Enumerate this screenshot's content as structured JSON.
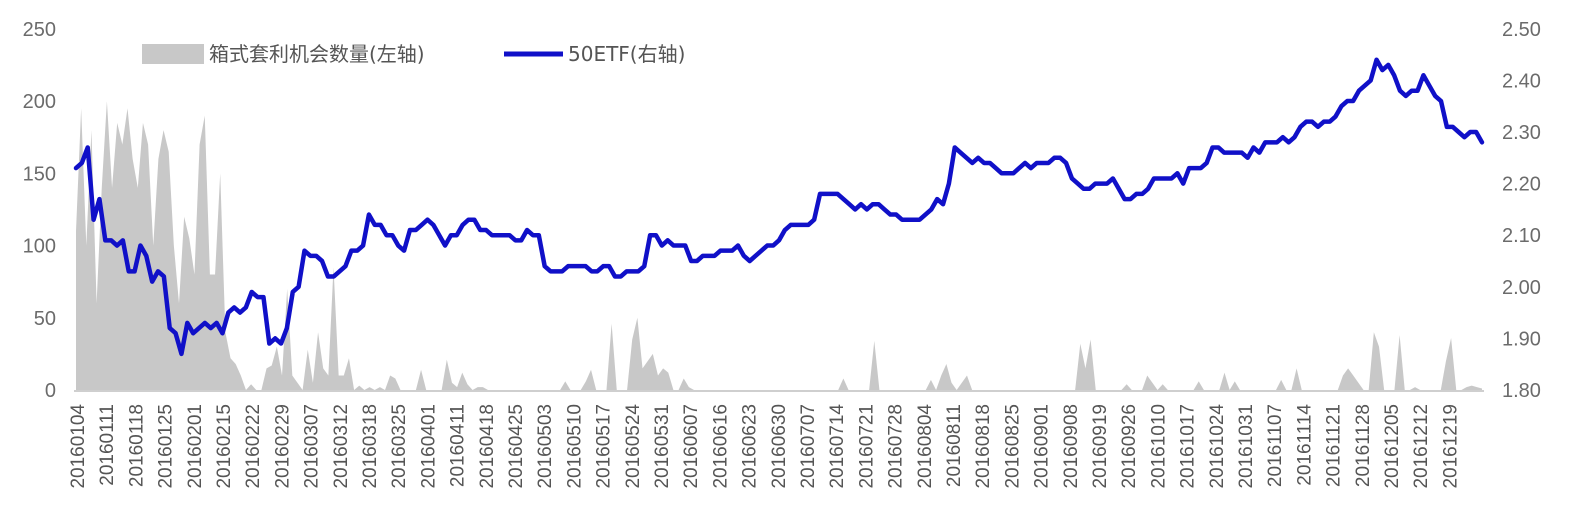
{
  "chart_data": {
    "type": "line",
    "subtype": "area + line, dual y-axis",
    "title": "",
    "xlabel": "",
    "y_left": {
      "ticks": [
        0,
        50,
        100,
        150,
        200,
        250
      ],
      "ylim": [
        0,
        250
      ]
    },
    "y_right": {
      "ticks": [
        "1.80",
        "1.90",
        "2.00",
        "2.10",
        "2.20",
        "2.30",
        "2.40",
        "2.50"
      ],
      "ylim": [
        1.8,
        2.5
      ]
    },
    "x_tick_labels": [
      "20160104",
      "20160111",
      "20160118",
      "20160125",
      "20160201",
      "20160215",
      "20160222",
      "20160229",
      "20160307",
      "20160312",
      "20160318",
      "20160325",
      "20160401",
      "20160411",
      "20160418",
      "20160425",
      "20160503",
      "20160510",
      "20160517",
      "20160524",
      "20160531",
      "20160607",
      "20160616",
      "20160623",
      "20160630",
      "20160707",
      "20160714",
      "20160721",
      "20160728",
      "20160804",
      "20160811",
      "20160818",
      "20160825",
      "20160901",
      "20160908",
      "20160919",
      "20160926",
      "20161010",
      "20161017",
      "20161024",
      "20161031",
      "20161107",
      "20161114",
      "20161121",
      "20161128",
      "20161205",
      "20161212",
      "20161219"
    ],
    "grid": false,
    "legend_position": "top-left",
    "legend": [
      {
        "label": "箱式套利机会数量(左轴)",
        "color": "#c8c8c8",
        "kind": "area"
      },
      {
        "label": "50ETF(右轴)",
        "color": "#1010c8",
        "kind": "line"
      }
    ],
    "series": [
      {
        "name": "箱式套利机会数量(左轴)",
        "axis": "left",
        "kind": "area",
        "color": "#c8c8c8",
        "values": [
          110,
          195,
          100,
          180,
          60,
          140,
          200,
          140,
          185,
          170,
          195,
          160,
          140,
          185,
          170,
          100,
          160,
          180,
          165,
          100,
          60,
          120,
          105,
          80,
          170,
          190,
          80,
          80,
          150,
          40,
          22,
          18,
          10,
          0,
          4,
          0,
          0,
          15,
          17,
          30,
          10,
          70,
          10,
          5,
          0,
          28,
          5,
          40,
          15,
          10,
          85,
          10,
          10,
          22,
          0,
          3,
          0,
          2,
          0,
          2,
          0,
          10,
          8,
          0,
          0,
          0,
          0,
          14,
          0,
          0,
          0,
          0,
          21,
          5,
          2,
          12,
          4,
          0,
          2,
          2,
          0,
          0,
          0,
          0,
          0,
          0,
          0,
          0,
          0,
          0,
          0,
          0,
          0,
          0,
          0,
          6,
          0,
          0,
          0,
          6,
          14,
          0,
          0,
          0,
          46,
          0,
          0,
          0,
          35,
          50,
          15,
          20,
          25,
          10,
          15,
          12,
          0,
          0,
          8,
          2,
          0,
          0,
          0,
          0,
          0,
          0,
          0,
          0,
          0,
          0,
          0,
          0,
          0,
          0,
          0,
          0,
          0,
          0,
          0,
          0,
          0,
          0,
          0,
          0,
          0,
          0,
          0,
          0,
          0,
          8,
          0,
          0,
          0,
          0,
          0,
          34,
          0,
          0,
          0,
          0,
          0,
          0,
          0,
          0,
          0,
          0,
          7,
          0,
          10,
          18,
          5,
          0,
          5,
          10,
          0,
          0,
          0,
          0,
          0,
          0,
          0,
          0,
          0,
          0,
          0,
          0,
          0,
          0,
          0,
          0,
          0,
          0,
          0,
          0,
          0,
          32,
          15,
          35,
          0,
          0,
          0,
          0,
          0,
          0,
          4,
          0,
          0,
          0,
          10,
          5,
          0,
          4,
          0,
          0,
          0,
          0,
          0,
          0,
          6,
          0,
          0,
          0,
          0,
          12,
          0,
          6,
          0,
          0,
          0,
          0,
          0,
          0,
          0,
          0,
          7,
          0,
          0,
          15,
          0,
          0,
          0,
          0,
          0,
          0,
          0,
          0,
          10,
          15,
          10,
          5,
          0,
          0,
          40,
          30,
          0,
          0,
          0,
          38,
          0,
          0,
          2,
          0,
          0,
          0,
          0,
          0,
          20,
          36,
          0,
          0,
          2,
          3,
          2,
          1
        ]
      },
      {
        "name": "50ETF(右轴)",
        "axis": "right",
        "kind": "line",
        "color": "#1010c8",
        "values": [
          2.23,
          2.24,
          2.27,
          2.13,
          2.17,
          2.09,
          2.09,
          2.08,
          2.09,
          2.03,
          2.03,
          2.08,
          2.06,
          2.01,
          2.03,
          2.02,
          1.92,
          1.91,
          1.87,
          1.93,
          1.91,
          1.92,
          1.93,
          1.92,
          1.93,
          1.91,
          1.95,
          1.96,
          1.95,
          1.96,
          1.99,
          1.98,
          1.98,
          1.89,
          1.9,
          1.89,
          1.92,
          1.99,
          2.0,
          2.07,
          2.06,
          2.06,
          2.05,
          2.02,
          2.02,
          2.03,
          2.04,
          2.07,
          2.07,
          2.08,
          2.14,
          2.12,
          2.12,
          2.1,
          2.1,
          2.08,
          2.07,
          2.11,
          2.11,
          2.12,
          2.13,
          2.12,
          2.1,
          2.08,
          2.1,
          2.1,
          2.12,
          2.13,
          2.13,
          2.11,
          2.11,
          2.1,
          2.1,
          2.1,
          2.1,
          2.09,
          2.09,
          2.11,
          2.1,
          2.1,
          2.04,
          2.03,
          2.03,
          2.03,
          2.04,
          2.04,
          2.04,
          2.04,
          2.03,
          2.03,
          2.04,
          2.04,
          2.02,
          2.02,
          2.03,
          2.03,
          2.03,
          2.04,
          2.1,
          2.1,
          2.08,
          2.09,
          2.08,
          2.08,
          2.08,
          2.05,
          2.05,
          2.06,
          2.06,
          2.06,
          2.07,
          2.07,
          2.07,
          2.08,
          2.06,
          2.05,
          2.06,
          2.07,
          2.08,
          2.08,
          2.09,
          2.11,
          2.12,
          2.12,
          2.12,
          2.12,
          2.13,
          2.18,
          2.18,
          2.18,
          2.18,
          2.17,
          2.16,
          2.15,
          2.16,
          2.15,
          2.16,
          2.16,
          2.15,
          2.14,
          2.14,
          2.13,
          2.13,
          2.13,
          2.13,
          2.14,
          2.15,
          2.17,
          2.16,
          2.2,
          2.27,
          2.26,
          2.25,
          2.24,
          2.25,
          2.24,
          2.24,
          2.23,
          2.22,
          2.22,
          2.22,
          2.23,
          2.24,
          2.23,
          2.24,
          2.24,
          2.24,
          2.25,
          2.25,
          2.24,
          2.21,
          2.2,
          2.19,
          2.19,
          2.2,
          2.2,
          2.2,
          2.21,
          2.19,
          2.17,
          2.17,
          2.18,
          2.18,
          2.19,
          2.21,
          2.21,
          2.21,
          2.21,
          2.22,
          2.2,
          2.23,
          2.23,
          2.23,
          2.24,
          2.27,
          2.27,
          2.26,
          2.26,
          2.26,
          2.26,
          2.25,
          2.27,
          2.26,
          2.28,
          2.28,
          2.28,
          2.29,
          2.28,
          2.29,
          2.31,
          2.32,
          2.32,
          2.31,
          2.32,
          2.32,
          2.33,
          2.35,
          2.36,
          2.36,
          2.38,
          2.39,
          2.4,
          2.44,
          2.42,
          2.43,
          2.41,
          2.38,
          2.37,
          2.38,
          2.38,
          2.41,
          2.39,
          2.37,
          2.36,
          2.31,
          2.31,
          2.3,
          2.29,
          2.3,
          2.3,
          2.28
        ]
      }
    ]
  }
}
